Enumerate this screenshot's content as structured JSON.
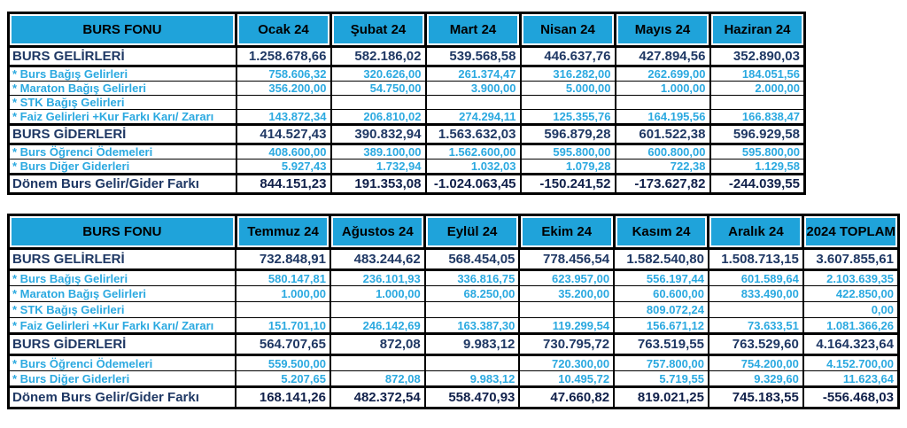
{
  "colors": {
    "header_bg": "#1FA3DA",
    "detail_text": "#2BA9E0",
    "section_text": "#1F3864",
    "total_value_text": "#10204A",
    "border": "#000000",
    "background": "#FFFFFF"
  },
  "tables": [
    {
      "title": "BURS FONU — Ocak-Haziran 2024",
      "header": [
        "BURS FONU",
        "Ocak 24",
        "Şubat 24",
        "Mart 24",
        "Nisan 24",
        "Mayıs 24",
        "Haziran 24"
      ],
      "rows": [
        {
          "type": "section",
          "label": "BURS GELİRLERİ",
          "values": [
            "1.258.678,66",
            "582.186,02",
            "539.568,58",
            "446.637,76",
            "427.894,56",
            "352.890,03"
          ]
        },
        {
          "type": "detail",
          "label": "* Burs Bağış Gelirleri",
          "values": [
            "758.606,32",
            "320.626,00",
            "261.374,47",
            "316.282,00",
            "262.699,00",
            "184.051,56"
          ]
        },
        {
          "type": "detail",
          "label": "* Maraton Bağış Gelirleri",
          "values": [
            "356.200,00",
            "54.750,00",
            "3.900,00",
            "5.000,00",
            "1.000,00",
            "2.000,00"
          ]
        },
        {
          "type": "detail",
          "label": "* STK Bağış Gelirleri",
          "values": [
            "",
            "",
            "",
            "",
            "",
            ""
          ]
        },
        {
          "type": "detail",
          "label": "* Faiz Gelirleri +Kur Farkı Karı/ Zararı",
          "values": [
            "143.872,34",
            "206.810,02",
            "274.294,11",
            "125.355,76",
            "164.195,56",
            "166.838,47"
          ]
        },
        {
          "type": "section",
          "label": "BURS GİDERLERİ",
          "values": [
            "414.527,43",
            "390.832,94",
            "1.563.632,03",
            "596.879,28",
            "601.522,38",
            "596.929,58"
          ]
        },
        {
          "type": "detail",
          "label": "* Burs Öğrenci Ödemeleri",
          "values": [
            "408.600,00",
            "389.100,00",
            "1.562.600,00",
            "595.800,00",
            "600.800,00",
            "595.800,00"
          ]
        },
        {
          "type": "detail",
          "label": "* Burs Diğer Giderleri",
          "values": [
            "5.927,43",
            "1.732,94",
            "1.032,03",
            "1.079,28",
            "722,38",
            "1.129,58"
          ]
        },
        {
          "type": "total",
          "label": "Dönem Burs Gelir/Gider Farkı",
          "values": [
            "844.151,23",
            "191.353,08",
            "-1.024.063,45",
            "-150.241,52",
            "-173.627,82",
            "-244.039,55"
          ]
        }
      ]
    },
    {
      "title": "BURS FONU — Temmuz-Aralık 2024 ve Toplam",
      "header": [
        "BURS FONU",
        "Temmuz 24",
        "Ağustos 24",
        "Eylül 24",
        "Ekim 24",
        "Kasım 24",
        "Aralık 24",
        "2024 TOPLAM"
      ],
      "rows": [
        {
          "type": "section",
          "label": "BURS GELİRLERİ",
          "values": [
            "732.848,91",
            "483.244,62",
            "568.454,05",
            "778.456,54",
            "1.582.540,80",
            "1.508.713,15",
            "3.607.855,61"
          ]
        },
        {
          "type": "detail",
          "label": "* Burs Bağış Gelirleri",
          "values": [
            "580.147,81",
            "236.101,93",
            "336.816,75",
            "623.957,00",
            "556.197,44",
            "601.589,64",
            "2.103.639,35"
          ]
        },
        {
          "type": "detail",
          "label": "* Maraton Bağış Gelirleri",
          "values": [
            "1.000,00",
            "1.000,00",
            "68.250,00",
            "35.200,00",
            "60.600,00",
            "833.490,00",
            "422.850,00"
          ]
        },
        {
          "type": "detail",
          "label": "* STK Bağış Gelirleri",
          "values": [
            "",
            "",
            "",
            "",
            "809.072,24",
            "",
            "0,00"
          ]
        },
        {
          "type": "detail",
          "label": "* Faiz Gelirleri +Kur Farkı Karı/ Zararı",
          "values": [
            "151.701,10",
            "246.142,69",
            "163.387,30",
            "119.299,54",
            "156.671,12",
            "73.633,51",
            "1.081.366,26"
          ]
        },
        {
          "type": "section",
          "label": "BURS GİDERLERİ",
          "values": [
            "564.707,65",
            "872,08",
            "9.983,12",
            "730.795,72",
            "763.519,55",
            "763.529,60",
            "4.164.323,64"
          ]
        },
        {
          "type": "detail",
          "label": "* Burs Öğrenci Ödemeleri",
          "values": [
            "559.500,00",
            "",
            "",
            "720.300,00",
            "757.800,00",
            "754.200,00",
            "4.152.700,00"
          ]
        },
        {
          "type": "detail",
          "label": "* Burs Diğer Giderleri",
          "values": [
            "5.207,65",
            "872,08",
            "9.983,12",
            "10.495,72",
            "5.719,55",
            "9.329,60",
            "11.623,64"
          ]
        },
        {
          "type": "total",
          "label": "Dönem Burs Gelir/Gider Farkı",
          "values": [
            "168.141,26",
            "482.372,54",
            "558.470,93",
            "47.660,82",
            "819.021,25",
            "745.183,55",
            "-556.468,03"
          ]
        }
      ]
    }
  ]
}
